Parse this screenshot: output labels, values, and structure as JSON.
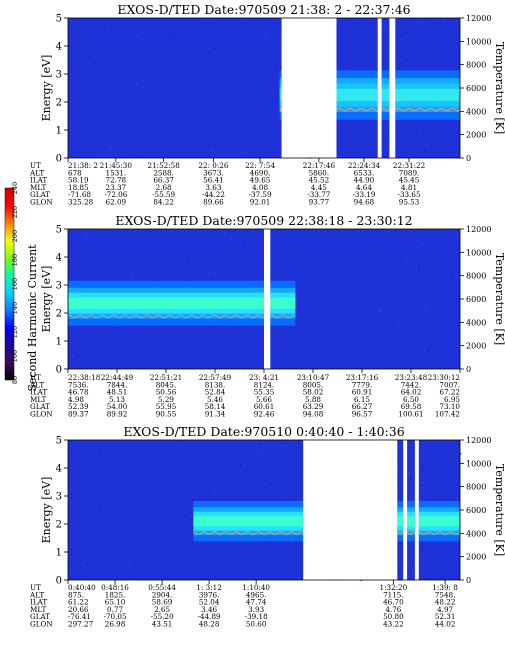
{
  "colorbar": {
    "label": "Second Harmonic Current",
    "ticks": [
      "80",
      "100",
      "120",
      "140",
      "160",
      "180",
      "200",
      "220",
      "240"
    ],
    "range": [
      80,
      240
    ],
    "colors": [
      "#000000",
      "#3d0a5c",
      "#1a0a9c",
      "#0000ff",
      "#0080ff",
      "#00d0ff",
      "#00ffaa",
      "#80ff00",
      "#ffff00",
      "#ff8000",
      "#ff0000",
      "#d00000"
    ]
  },
  "chart_data": [
    {
      "type": "heatmap",
      "title": "EXOS-D/TED   Date:970509  21:38: 2 - 22:37:46",
      "ylabel": "Energy [eV]",
      "y2label": "Temperature [K]",
      "ylim": [
        0,
        5
      ],
      "y2lim": [
        0,
        12000
      ],
      "yticks": [
        "0",
        "1",
        "2",
        "3",
        "4",
        "5"
      ],
      "y2ticks": [
        "0",
        "2000",
        "4000",
        "6000",
        "8000",
        "10000",
        "12000"
      ],
      "x_ticks": [
        0.0,
        0.122,
        0.244,
        0.371,
        0.49,
        0.64,
        0.755,
        0.87
      ],
      "gaps": [
        [
          0.545,
          0.685
        ],
        [
          0.79,
          0.8
        ],
        [
          0.82,
          0.835
        ]
      ],
      "band_segments": [
        [
          0.54,
          0.545
        ],
        [
          0.685,
          0.79
        ],
        [
          0.8,
          0.82
        ],
        [
          0.835,
          1.0
        ]
      ],
      "band": {
        "center": 2.25,
        "halfwidth": 0.55,
        "intensity": 0.55
      },
      "ephemeris": {
        "labels": [
          "UT",
          "ALT",
          "ILAT",
          "MLT",
          "GLAT",
          "GLON"
        ],
        "columns": [
          [
            "21:38: 2",
            "678",
            "58.19",
            "18.85",
            "-71.68",
            "325.28"
          ],
          [
            "21:45:30",
            "1531.",
            "72.78",
            "23.37",
            "-72.06",
            "62.09"
          ],
          [
            "21:52:58",
            "2588.",
            "66.37",
            "2.68",
            "-55.59",
            "84.22"
          ],
          [
            "22: 0:26",
            "3673.",
            "56.41",
            "3.63",
            "-44.22",
            "89.66"
          ],
          [
            "22: 7:54",
            "4690.",
            "49.65",
            "4.08",
            "-37.59",
            "92.01"
          ],
          [
            "22:17:46",
            "5860.",
            "45.52",
            "4.45",
            "-33.77",
            "93.77"
          ],
          [
            "22:24:34",
            "6533.",
            "44.90",
            "4.64",
            "-33.19",
            "94.68"
          ],
          [
            "22:31:22",
            "7089.",
            "45.45",
            "4.81",
            "-33.65",
            "95.53"
          ]
        ]
      }
    },
    {
      "type": "heatmap",
      "title": "EXOS-D/TED   Date:970509  22:38:18 - 23:30:12",
      "ylabel": "Energy [eV]",
      "y2label": "Temperature [K]",
      "ylim": [
        0,
        5
      ],
      "y2lim": [
        0,
        12000
      ],
      "yticks": [
        "0",
        "1",
        "2",
        "3",
        "4",
        "5"
      ],
      "y2ticks": [
        "0",
        "2000",
        "4000",
        "6000",
        "8000",
        "10000",
        "12000"
      ],
      "x_ticks": [
        0.0,
        0.125,
        0.25,
        0.375,
        0.5,
        0.625,
        0.75,
        0.875,
        1.0
      ],
      "gaps": [
        [
          0.5,
          0.516
        ]
      ],
      "band_segments": [
        [
          0.0,
          0.5
        ],
        [
          0.516,
          0.58
        ]
      ],
      "band": {
        "center": 2.35,
        "halfwidth": 0.5,
        "intensity": 0.8
      },
      "ephemeris": {
        "labels": [
          "UT",
          "ALT",
          "ILAT",
          "MLT",
          "GLAT",
          "GLON"
        ],
        "columns": [
          [
            "22:38:18",
            "7536.",
            "46.78",
            "4.98",
            "52.39",
            "89.37"
          ],
          [
            "22:44:49",
            "7844.",
            "48.51",
            "5.13",
            "54.00",
            "89.92"
          ],
          [
            "22:51:21",
            "8045.",
            "50.56",
            "5.29",
            "55.95",
            "90.55"
          ],
          [
            "22:57:49",
            "8138.",
            "52.84",
            "5.46",
            "58.14",
            "91.34"
          ],
          [
            "23: 4:21",
            "8124.",
            "55.35",
            "5.66",
            "60.61",
            "92.46"
          ],
          [
            "23:10:47",
            "8005.",
            "58.02",
            "5.88",
            "63.29",
            "94.08"
          ],
          [
            "23:17:16",
            "7779.",
            "60.91",
            "6.15",
            "66.27",
            "96.57"
          ],
          [
            "23:23:48",
            "7442.",
            "64.02",
            "6.50",
            "69.58",
            "100.61"
          ],
          [
            "23:30:12",
            "7007.",
            "67.22",
            "6.95",
            "73.10",
            "107.42"
          ]
        ]
      }
    },
    {
      "type": "heatmap",
      "title": "EXOS-D/TED   Date:970510   0:40:40 - 1:40:36",
      "ylabel": "Energy [eV]",
      "y2label": "Temperature [K]",
      "ylim": [
        0,
        5
      ],
      "y2lim": [
        0,
        12000
      ],
      "yticks": [
        "0",
        "1",
        "2",
        "3",
        "4",
        "5"
      ],
      "y2ticks": [
        "0",
        "2000",
        "4000",
        "6000",
        "8000",
        "10000",
        "12000"
      ],
      "x_ticks": [
        0.0,
        0.12,
        0.24,
        0.36,
        0.48,
        0.83,
        0.962
      ],
      "gaps": [
        [
          0.6,
          0.84
        ],
        [
          0.855,
          0.865
        ],
        [
          0.885,
          0.895
        ]
      ],
      "band_segments": [
        [
          0.32,
          0.6
        ],
        [
          0.84,
          0.855
        ],
        [
          0.865,
          0.885
        ],
        [
          0.895,
          1.0
        ]
      ],
      "band": {
        "center": 2.1,
        "halfwidth": 0.45,
        "intensity": 0.85
      },
      "ephemeris": {
        "labels": [
          "UT",
          "ALT",
          "ILAT",
          "MLT",
          "GLAT",
          "GLON"
        ],
        "columns": [
          [
            "0:40:40",
            "875.",
            "61.22",
            "20.66",
            "-76.41",
            "297.27"
          ],
          [
            "0:48:16",
            "1825.",
            "65.10",
            "0.77",
            "-70.05",
            "26.98"
          ],
          [
            "0:55:44",
            "2904.",
            "58.69",
            "2.65",
            "-55.20",
            "43.51"
          ],
          [
            "1: 3:12",
            "3976.",
            "52.04",
            "3.46",
            "-44.89",
            "48.28"
          ],
          [
            "1:10:40",
            "4965.",
            "47.74",
            "3.93",
            "-39.18",
            "50.60"
          ],
          [
            "1:32:20",
            "7115.",
            "46.70",
            "4.76",
            "50.80",
            "43.22"
          ],
          [
            "1:39: 8",
            "7548.",
            "48.22",
            "4.97",
            "52.31",
            "44.02"
          ]
        ]
      }
    }
  ]
}
